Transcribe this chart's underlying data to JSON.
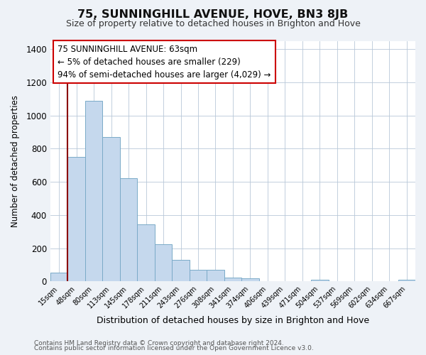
{
  "title": "75, SUNNINGHILL AVENUE, HOVE, BN3 8JB",
  "subtitle": "Size of property relative to detached houses in Brighton and Hove",
  "xlabel": "Distribution of detached houses by size in Brighton and Hove",
  "ylabel": "Number of detached properties",
  "bar_labels": [
    "15sqm",
    "48sqm",
    "80sqm",
    "113sqm",
    "145sqm",
    "178sqm",
    "211sqm",
    "243sqm",
    "276sqm",
    "308sqm",
    "341sqm",
    "374sqm",
    "406sqm",
    "439sqm",
    "471sqm",
    "504sqm",
    "537sqm",
    "569sqm",
    "602sqm",
    "634sqm",
    "667sqm"
  ],
  "bar_values": [
    55,
    750,
    1090,
    870,
    620,
    345,
    225,
    130,
    70,
    70,
    25,
    20,
    0,
    0,
    0,
    10,
    0,
    0,
    0,
    0,
    10
  ],
  "bar_color": "#c5d8ed",
  "bar_edge_color": "#7aaac8",
  "ylim": [
    0,
    1450
  ],
  "yticks": [
    0,
    200,
    400,
    600,
    800,
    1000,
    1200,
    1400
  ],
  "red_line_x": 1.0,
  "annotation_title": "75 SUNNINGHILL AVENUE: 63sqm",
  "annotation_line1": "← 5% of detached houses are smaller (229)",
  "annotation_line2": "94% of semi-detached houses are larger (4,029) →",
  "footer1": "Contains HM Land Registry data © Crown copyright and database right 2024.",
  "footer2": "Contains public sector information licensed under the Open Government Licence v3.0.",
  "background_color": "#eef2f7",
  "plot_background": "#ffffff"
}
